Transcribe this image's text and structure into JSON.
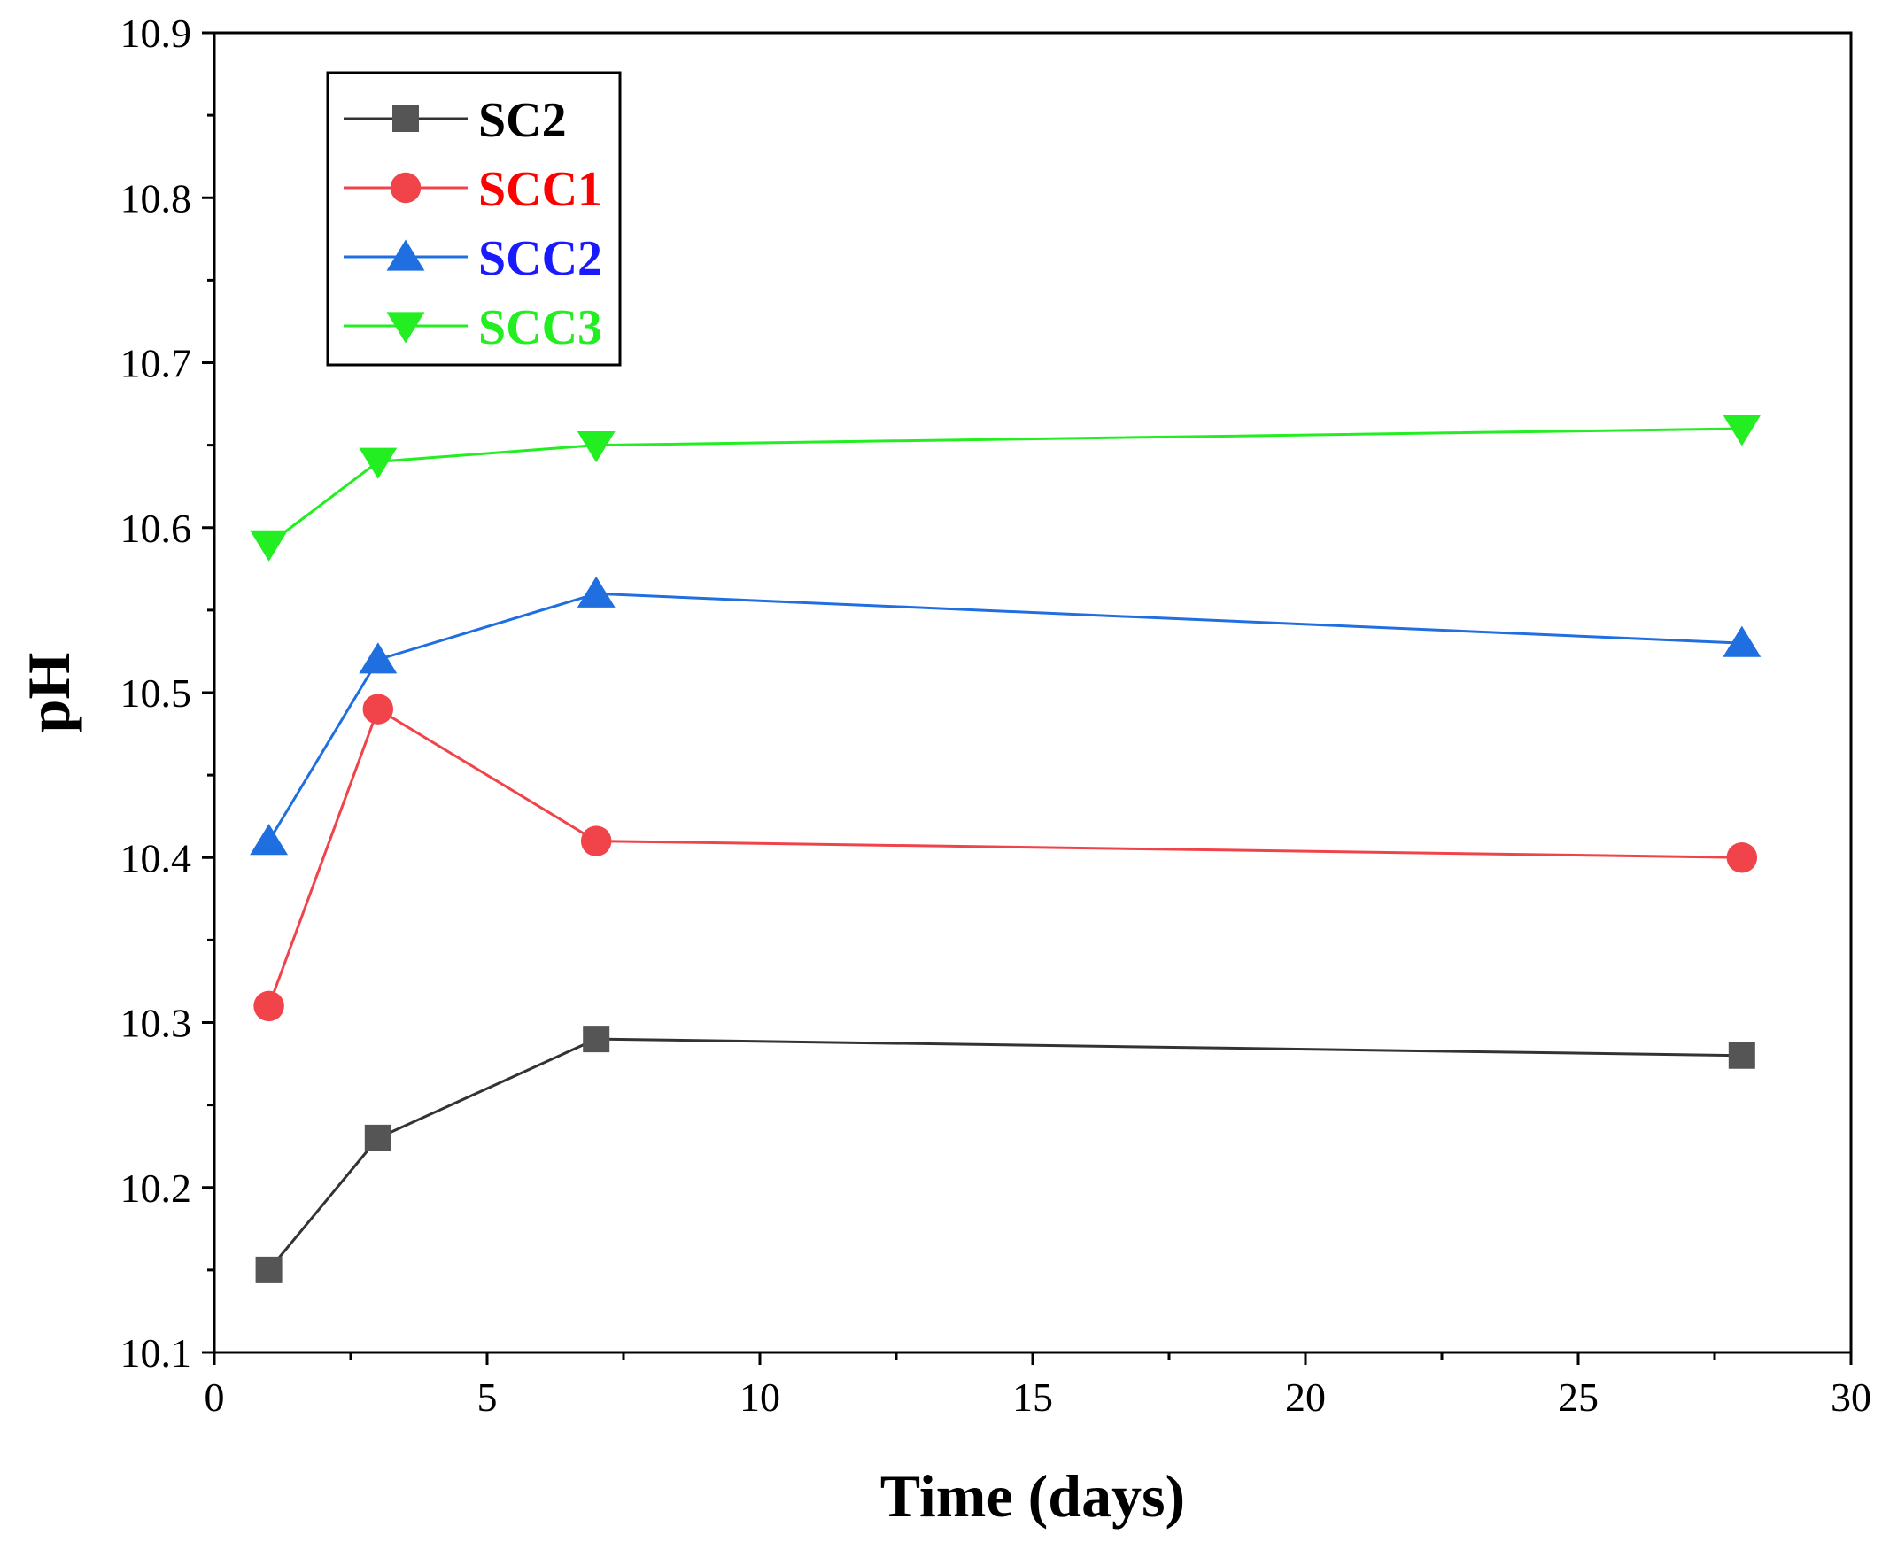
{
  "chart_data": {
    "type": "line",
    "title": "",
    "xlabel": "Time (days)",
    "ylabel": "pH",
    "xlim": [
      0,
      30
    ],
    "ylim": [
      10.1,
      10.9
    ],
    "xticks": [
      0,
      5,
      10,
      15,
      20,
      25,
      30
    ],
    "xtick_labels": [
      "0",
      "5",
      "10",
      "15",
      "20",
      "25",
      "30"
    ],
    "yticks": [
      10.1,
      10.2,
      10.3,
      10.4,
      10.5,
      10.6,
      10.7,
      10.8,
      10.9
    ],
    "ytick_labels": [
      "10.1",
      "10.2",
      "10.3",
      "10.4",
      "10.5",
      "10.6",
      "10.7",
      "10.8",
      "10.9"
    ],
    "grid": false,
    "legend_position": "top-left",
    "x": [
      1,
      3,
      7,
      28
    ],
    "series": [
      {
        "name": "SC2",
        "color": "#555555",
        "line_color": "#333333",
        "text_color": "#000000",
        "marker": "square",
        "values": [
          10.15,
          10.23,
          10.29,
          10.28
        ]
      },
      {
        "name": "SCC1",
        "color": "#f0434a",
        "line_color": "#f0434a",
        "text_color": "#ff0000",
        "marker": "circle",
        "values": [
          10.31,
          10.49,
          10.41,
          10.4
        ]
      },
      {
        "name": "SCC2",
        "color": "#1f6fe0",
        "line_color": "#1f6fe0",
        "text_color": "#1a1aff",
        "marker": "triangle-up",
        "values": [
          10.41,
          10.52,
          10.56,
          10.53
        ]
      },
      {
        "name": "SCC3",
        "color": "#22ee22",
        "line_color": "#22ee22",
        "text_color": "#22ee22",
        "marker": "triangle-down",
        "values": [
          10.59,
          10.64,
          10.65,
          10.66
        ]
      }
    ]
  }
}
